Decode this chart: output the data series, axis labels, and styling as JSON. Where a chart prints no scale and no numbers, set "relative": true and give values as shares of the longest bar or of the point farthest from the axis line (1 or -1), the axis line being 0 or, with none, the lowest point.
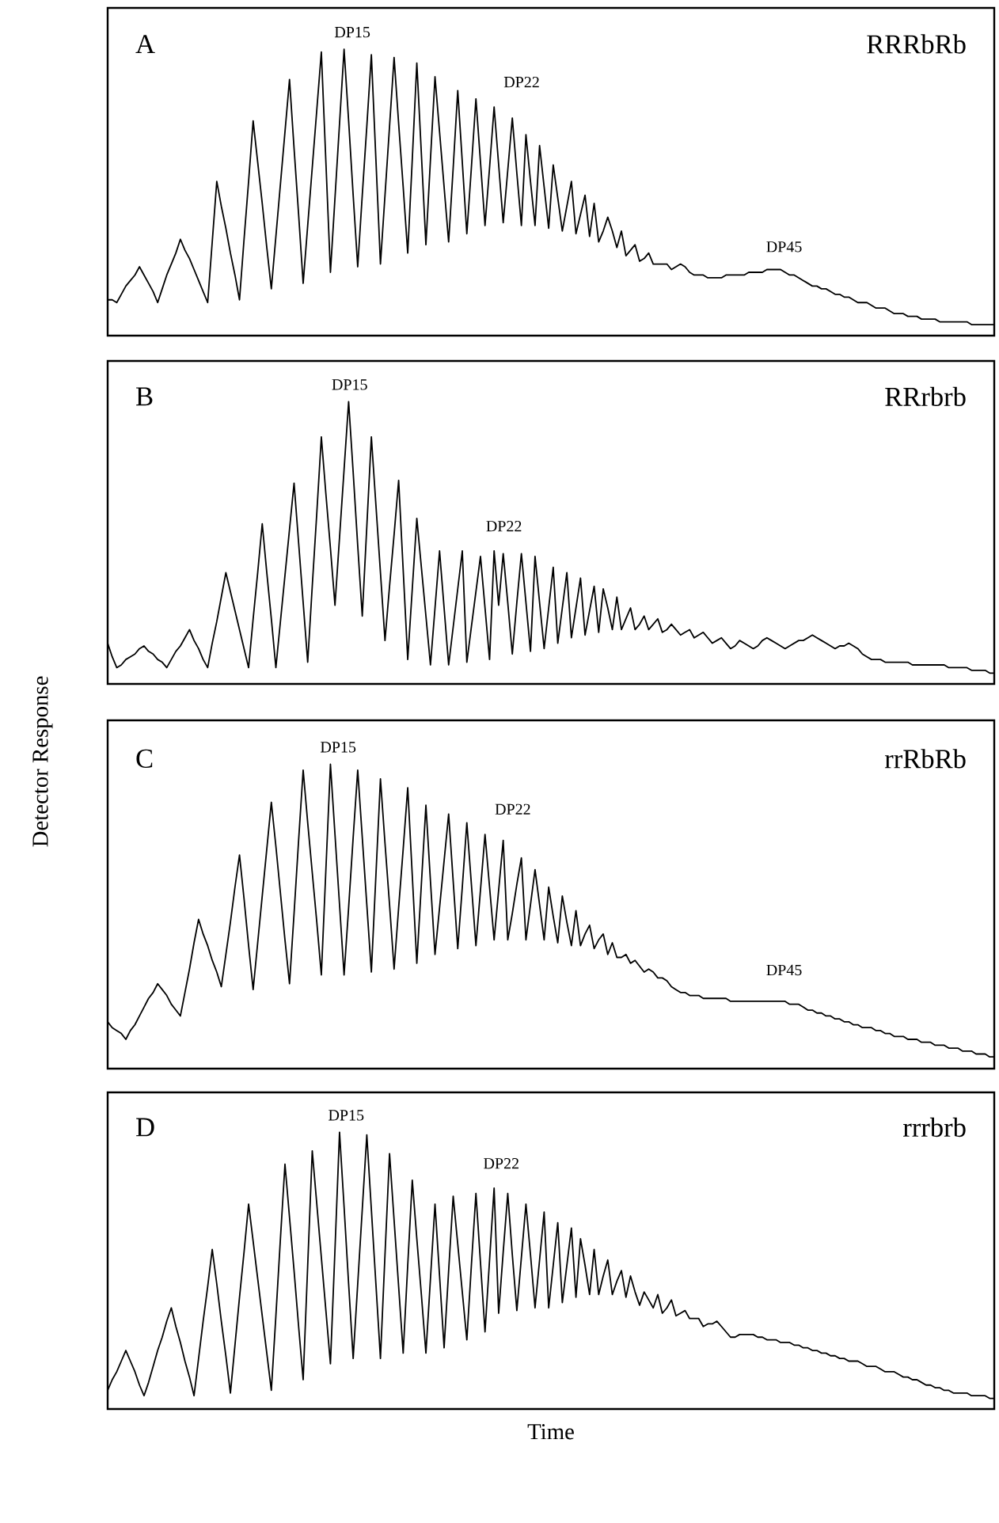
{
  "chart_data": [
    {
      "type": "line",
      "title": "RRRbRb",
      "relative": true,
      "color": "#000000",
      "annotations": [
        "A",
        "DP15",
        "DP22",
        "DP45"
      ],
      "categories": [
        null,
        null,
        null,
        null,
        null,
        null,
        null,
        null,
        null,
        null,
        null,
        null,
        null,
        null,
        null,
        null,
        null,
        null,
        null,
        null,
        null,
        null,
        null,
        null,
        null,
        null,
        null,
        null,
        null,
        null,
        null,
        null,
        null,
        null,
        null,
        null,
        null,
        null,
        null,
        null,
        null,
        null,
        null,
        null,
        null,
        null,
        null,
        null,
        null,
        null,
        null,
        null,
        null,
        null,
        null,
        null,
        null,
        null,
        null,
        null,
        null,
        null,
        null,
        null,
        null,
        null,
        null,
        null,
        null,
        null,
        null,
        null,
        null,
        null,
        null,
        null,
        null,
        null,
        null,
        null,
        null,
        null,
        null,
        null,
        null,
        null,
        null,
        null,
        null,
        null,
        null,
        null,
        null,
        null,
        null,
        null,
        null,
        null,
        null,
        null,
        null,
        null,
        null,
        null,
        null,
        null,
        null,
        null,
        null,
        null,
        null,
        null,
        null,
        null,
        null,
        null,
        null,
        null,
        null,
        null,
        null,
        null,
        null,
        null,
        null,
        null,
        null,
        null,
        null,
        null,
        null,
        null,
        null,
        null,
        null,
        null,
        null,
        null,
        null,
        null,
        null,
        null,
        null,
        null,
        null,
        null,
        null,
        null,
        null,
        null,
        null,
        null,
        null,
        null,
        null,
        null,
        null,
        null,
        null,
        null,
        null,
        null,
        null,
        null,
        null,
        null,
        null,
        null,
        null,
        null,
        null,
        null,
        null,
        null,
        null,
        null,
        null,
        null,
        null,
        null,
        null,
        null,
        null,
        null,
        null,
        null,
        null,
        null,
        null,
        null,
        null,
        null,
        null,
        null,
        null,
        null
      ],
      "values": [
        0.09,
        0.09,
        0.08,
        0.11,
        0.14,
        0.16,
        0.18,
        0.21,
        0.18,
        0.15,
        0.12,
        0.08,
        0.13,
        0.18,
        0.22,
        0.26,
        0.31,
        0.27,
        0.24,
        0.2,
        0.16,
        0.12,
        0.08,
        0.3,
        0.52,
        0.43,
        0.35,
        0.26,
        0.18,
        0.09,
        0.31,
        0.52,
        0.74,
        0.59,
        0.44,
        0.28,
        0.13,
        0.32,
        0.51,
        0.7,
        0.89,
        0.64,
        0.4,
        0.15,
        0.36,
        0.57,
        0.78,
        0.99,
        0.59,
        0.19,
        0.46,
        0.73,
        1.0,
        0.74,
        0.47,
        0.21,
        0.47,
        0.72,
        0.98,
        0.6,
        0.22,
        0.47,
        0.72,
        0.97,
        0.73,
        0.5,
        0.26,
        0.6,
        0.95,
        0.62,
        0.29,
        0.6,
        0.9,
        0.7,
        0.5,
        0.3,
        0.57,
        0.85,
        0.59,
        0.33,
        0.57,
        0.82,
        0.59,
        0.36,
        0.57,
        0.79,
        0.58,
        0.37,
        0.56,
        0.75,
        0.55,
        0.36,
        0.69,
        0.52,
        0.36,
        0.65,
        0.5,
        0.35,
        0.58,
        0.46,
        0.34,
        0.43,
        0.52,
        0.33,
        0.4,
        0.47,
        0.32,
        0.44,
        0.3,
        0.34,
        0.39,
        0.34,
        0.28,
        0.34,
        0.25,
        0.27,
        0.29,
        0.23,
        0.24,
        0.26,
        0.22,
        0.22,
        0.22,
        0.22,
        0.2,
        0.21,
        0.22,
        0.21,
        0.19,
        0.18,
        0.18,
        0.18,
        0.17,
        0.17,
        0.17,
        0.17,
        0.18,
        0.18,
        0.18,
        0.18,
        0.18,
        0.19,
        0.19,
        0.19,
        0.19,
        0.2,
        0.2,
        0.2,
        0.2,
        0.19,
        0.18,
        0.18,
        0.17,
        0.16,
        0.15,
        0.14,
        0.14,
        0.13,
        0.13,
        0.12,
        0.11,
        0.11,
        0.1,
        0.1,
        0.09,
        0.08,
        0.08,
        0.08,
        0.07,
        0.06,
        0.06,
        0.06,
        0.05,
        0.04,
        0.04,
        0.04,
        0.03,
        0.03,
        0.03,
        0.02,
        0.02,
        0.02,
        0.02,
        0.01,
        0.01,
        0.01,
        0.01,
        0.01,
        0.01,
        0.01,
        0.0,
        0.0,
        0.0,
        0.0,
        0.0,
        0.0
      ]
    },
    {
      "type": "line",
      "title": "RRrbrb",
      "ylabel": "Detector Response",
      "relative": true,
      "color": "#000000",
      "annotations": [
        "B",
        "DP15",
        "DP22"
      ],
      "categories": [
        null,
        null,
        null,
        null,
        null,
        null,
        null,
        null,
        null,
        null,
        null,
        null,
        null,
        null,
        null,
        null,
        null,
        null,
        null,
        null,
        null,
        null,
        null,
        null,
        null,
        null,
        null,
        null,
        null,
        null,
        null,
        null,
        null,
        null,
        null,
        null,
        null,
        null,
        null,
        null,
        null,
        null,
        null,
        null,
        null,
        null,
        null,
        null,
        null,
        null,
        null,
        null,
        null,
        null,
        null,
        null,
        null,
        null,
        null,
        null,
        null,
        null,
        null,
        null,
        null,
        null,
        null,
        null,
        null,
        null,
        null,
        null,
        null,
        null,
        null,
        null,
        null,
        null,
        null,
        null,
        null,
        null,
        null,
        null,
        null,
        null,
        null,
        null,
        null,
        null,
        null,
        null,
        null,
        null,
        null,
        null,
        null,
        null,
        null,
        null,
        null,
        null,
        null,
        null,
        null,
        null,
        null,
        null,
        null,
        null,
        null,
        null,
        null,
        null,
        null,
        null,
        null,
        null,
        null,
        null,
        null,
        null,
        null,
        null,
        null,
        null,
        null,
        null,
        null,
        null,
        null,
        null,
        null,
        null,
        null,
        null,
        null,
        null,
        null,
        null,
        null,
        null,
        null,
        null,
        null,
        null,
        null,
        null,
        null,
        null,
        null,
        null,
        null,
        null,
        null,
        null,
        null,
        null,
        null,
        null,
        null,
        null,
        null,
        null,
        null,
        null,
        null,
        null,
        null,
        null,
        null,
        null,
        null,
        null,
        null,
        null,
        null,
        null,
        null,
        null,
        null,
        null,
        null,
        null,
        null,
        null,
        null,
        null,
        null,
        null,
        null,
        null,
        null,
        null,
        null,
        null
      ],
      "values": [
        0.11,
        0.06,
        0.02,
        0.03,
        0.05,
        0.06,
        0.07,
        0.09,
        0.1,
        0.08,
        0.07,
        0.05,
        0.04,
        0.02,
        0.05,
        0.08,
        0.1,
        0.13,
        0.16,
        0.12,
        0.09,
        0.05,
        0.02,
        0.11,
        0.19,
        0.28,
        0.37,
        0.3,
        0.23,
        0.16,
        0.09,
        0.02,
        0.2,
        0.37,
        0.55,
        0.37,
        0.2,
        0.02,
        0.19,
        0.36,
        0.53,
        0.7,
        0.48,
        0.26,
        0.04,
        0.32,
        0.59,
        0.87,
        0.66,
        0.46,
        0.25,
        0.5,
        0.75,
        1.0,
        0.74,
        0.47,
        0.21,
        0.54,
        0.87,
        0.62,
        0.37,
        0.12,
        0.32,
        0.51,
        0.71,
        0.38,
        0.05,
        0.31,
        0.57,
        0.39,
        0.21,
        0.03,
        0.24,
        0.45,
        0.24,
        0.03,
        0.17,
        0.31,
        0.45,
        0.04,
        0.17,
        0.3,
        0.43,
        0.24,
        0.05,
        0.45,
        0.25,
        0.44,
        0.26,
        0.07,
        0.26,
        0.44,
        0.26,
        0.08,
        0.43,
        0.26,
        0.09,
        0.24,
        0.39,
        0.11,
        0.24,
        0.37,
        0.13,
        0.24,
        0.35,
        0.14,
        0.23,
        0.32,
        0.15,
        0.31,
        0.24,
        0.16,
        0.28,
        0.16,
        0.2,
        0.24,
        0.16,
        0.18,
        0.21,
        0.16,
        0.18,
        0.2,
        0.15,
        0.16,
        0.18,
        0.16,
        0.14,
        0.15,
        0.16,
        0.13,
        0.14,
        0.15,
        0.13,
        0.11,
        0.12,
        0.13,
        0.11,
        0.09,
        0.1,
        0.12,
        0.11,
        0.1,
        0.09,
        0.1,
        0.12,
        0.13,
        0.12,
        0.11,
        0.1,
        0.09,
        0.1,
        0.11,
        0.12,
        0.12,
        0.13,
        0.14,
        0.13,
        0.12,
        0.11,
        0.1,
        0.09,
        0.1,
        0.1,
        0.11,
        0.1,
        0.09,
        0.07,
        0.06,
        0.05,
        0.05,
        0.05,
        0.04,
        0.04,
        0.04,
        0.04,
        0.04,
        0.04,
        0.03,
        0.03,
        0.03,
        0.03,
        0.03,
        0.03,
        0.03,
        0.03,
        0.02,
        0.02,
        0.02,
        0.02,
        0.02,
        0.01,
        0.01,
        0.01,
        0.01,
        0.0,
        0.0
      ]
    },
    {
      "type": "line",
      "title": "rrRbRb",
      "relative": true,
      "color": "#000000",
      "annotations": [
        "C",
        "DP15",
        "DP22",
        "DP45"
      ],
      "categories": [
        null,
        null,
        null,
        null,
        null,
        null,
        null,
        null,
        null,
        null,
        null,
        null,
        null,
        null,
        null,
        null,
        null,
        null,
        null,
        null,
        null,
        null,
        null,
        null,
        null,
        null,
        null,
        null,
        null,
        null,
        null,
        null,
        null,
        null,
        null,
        null,
        null,
        null,
        null,
        null,
        null,
        null,
        null,
        null,
        null,
        null,
        null,
        null,
        null,
        null,
        null,
        null,
        null,
        null,
        null,
        null,
        null,
        null,
        null,
        null,
        null,
        null,
        null,
        null,
        null,
        null,
        null,
        null,
        null,
        null,
        null,
        null,
        null,
        null,
        null,
        null,
        null,
        null,
        null,
        null,
        null,
        null,
        null,
        null,
        null,
        null,
        null,
        null,
        null,
        null,
        null,
        null,
        null,
        null,
        null,
        null,
        null,
        null,
        null,
        null,
        null,
        null,
        null,
        null,
        null,
        null,
        null,
        null,
        null,
        null,
        null,
        null,
        null,
        null,
        null,
        null,
        null,
        null,
        null,
        null,
        null,
        null,
        null,
        null,
        null,
        null,
        null,
        null,
        null,
        null,
        null,
        null,
        null,
        null,
        null,
        null,
        null,
        null,
        null,
        null,
        null,
        null,
        null,
        null,
        null,
        null,
        null,
        null,
        null,
        null,
        null,
        null,
        null,
        null,
        null,
        null,
        null,
        null,
        null,
        null,
        null,
        null,
        null,
        null,
        null,
        null,
        null,
        null,
        null,
        null,
        null,
        null,
        null,
        null,
        null,
        null,
        null,
        null,
        null,
        null,
        null,
        null,
        null,
        null,
        null,
        null,
        null,
        null,
        null,
        null,
        null,
        null,
        null,
        null,
        null,
        null
      ],
      "values": [
        0.12,
        0.1,
        0.09,
        0.08,
        0.06,
        0.09,
        0.11,
        0.14,
        0.17,
        0.2,
        0.22,
        0.25,
        0.23,
        0.21,
        0.18,
        0.16,
        0.14,
        0.22,
        0.3,
        0.39,
        0.47,
        0.42,
        0.38,
        0.33,
        0.29,
        0.24,
        0.35,
        0.46,
        0.58,
        0.69,
        0.54,
        0.38,
        0.23,
        0.39,
        0.55,
        0.71,
        0.87,
        0.72,
        0.56,
        0.4,
        0.25,
        0.49,
        0.74,
        0.98,
        0.8,
        0.63,
        0.46,
        0.28,
        0.64,
        1.0,
        0.76,
        0.52,
        0.28,
        0.51,
        0.75,
        0.98,
        0.75,
        0.52,
        0.29,
        0.62,
        0.95,
        0.73,
        0.52,
        0.3,
        0.51,
        0.71,
        0.92,
        0.62,
        0.32,
        0.59,
        0.86,
        0.6,
        0.35,
        0.51,
        0.67,
        0.83,
        0.6,
        0.37,
        0.58,
        0.8,
        0.59,
        0.38,
        0.57,
        0.76,
        0.58,
        0.4,
        0.57,
        0.74,
        0.4,
        0.49,
        0.59,
        0.68,
        0.4,
        0.52,
        0.64,
        0.52,
        0.4,
        0.58,
        0.48,
        0.39,
        0.55,
        0.46,
        0.38,
        0.5,
        0.38,
        0.42,
        0.45,
        0.37,
        0.4,
        0.42,
        0.35,
        0.39,
        0.34,
        0.34,
        0.35,
        0.32,
        0.33,
        0.31,
        0.29,
        0.3,
        0.29,
        0.27,
        0.27,
        0.26,
        0.24,
        0.23,
        0.22,
        0.22,
        0.21,
        0.21,
        0.21,
        0.2,
        0.2,
        0.2,
        0.2,
        0.2,
        0.2,
        0.19,
        0.19,
        0.19,
        0.19,
        0.19,
        0.19,
        0.19,
        0.19,
        0.19,
        0.19,
        0.19,
        0.19,
        0.19,
        0.18,
        0.18,
        0.18,
        0.17,
        0.16,
        0.16,
        0.15,
        0.15,
        0.14,
        0.14,
        0.13,
        0.13,
        0.12,
        0.12,
        0.11,
        0.11,
        0.1,
        0.1,
        0.1,
        0.09,
        0.09,
        0.08,
        0.08,
        0.07,
        0.07,
        0.07,
        0.06,
        0.06,
        0.06,
        0.05,
        0.05,
        0.05,
        0.04,
        0.04,
        0.04,
        0.03,
        0.03,
        0.03,
        0.02,
        0.02,
        0.02,
        0.01,
        0.01,
        0.01,
        0.0,
        0.0
      ]
    },
    {
      "type": "line",
      "title": "rrrbrb",
      "xlabel": "Time",
      "relative": true,
      "color": "#000000",
      "annotations": [
        "D",
        "DP15",
        "DP22"
      ],
      "categories": [
        null,
        null,
        null,
        null,
        null,
        null,
        null,
        null,
        null,
        null,
        null,
        null,
        null,
        null,
        null,
        null,
        null,
        null,
        null,
        null,
        null,
        null,
        null,
        null,
        null,
        null,
        null,
        null,
        null,
        null,
        null,
        null,
        null,
        null,
        null,
        null,
        null,
        null,
        null,
        null,
        null,
        null,
        null,
        null,
        null,
        null,
        null,
        null,
        null,
        null,
        null,
        null,
        null,
        null,
        null,
        null,
        null,
        null,
        null,
        null,
        null,
        null,
        null,
        null,
        null,
        null,
        null,
        null,
        null,
        null,
        null,
        null,
        null,
        null,
        null,
        null,
        null,
        null,
        null,
        null,
        null,
        null,
        null,
        null,
        null,
        null,
        null,
        null,
        null,
        null,
        null,
        null,
        null,
        null,
        null,
        null,
        null,
        null,
        null,
        null,
        null,
        null,
        null,
        null,
        null,
        null,
        null,
        null,
        null,
        null,
        null,
        null,
        null,
        null,
        null,
        null,
        null,
        null,
        null,
        null,
        null,
        null,
        null,
        null,
        null,
        null,
        null,
        null,
        null,
        null,
        null,
        null,
        null,
        null,
        null,
        null,
        null,
        null,
        null,
        null,
        null,
        null,
        null,
        null,
        null,
        null,
        null,
        null,
        null,
        null,
        null,
        null,
        null,
        null,
        null,
        null,
        null,
        null,
        null,
        null,
        null,
        null,
        null,
        null,
        null,
        null,
        null,
        null,
        null,
        null,
        null,
        null,
        null,
        null,
        null,
        null,
        null,
        null,
        null,
        null,
        null,
        null,
        null,
        null,
        null,
        null,
        null,
        null,
        null,
        null,
        null,
        null,
        null,
        null,
        null,
        null
      ],
      "values": [
        0.03,
        0.07,
        0.1,
        0.14,
        0.18,
        0.14,
        0.1,
        0.05,
        0.01,
        0.06,
        0.12,
        0.18,
        0.23,
        0.29,
        0.34,
        0.27,
        0.21,
        0.14,
        0.08,
        0.01,
        0.15,
        0.29,
        0.42,
        0.56,
        0.43,
        0.29,
        0.16,
        0.02,
        0.2,
        0.38,
        0.55,
        0.73,
        0.59,
        0.45,
        0.31,
        0.17,
        0.03,
        0.31,
        0.6,
        0.88,
        0.68,
        0.48,
        0.27,
        0.07,
        0.5,
        0.93,
        0.73,
        0.53,
        0.33,
        0.13,
        0.56,
        1.0,
        0.72,
        0.43,
        0.15,
        0.43,
        0.71,
        0.99,
        0.71,
        0.43,
        0.15,
        0.54,
        0.92,
        0.67,
        0.42,
        0.17,
        0.5,
        0.82,
        0.6,
        0.39,
        0.17,
        0.45,
        0.73,
        0.46,
        0.19,
        0.48,
        0.76,
        0.58,
        0.4,
        0.22,
        0.5,
        0.77,
        0.51,
        0.25,
        0.52,
        0.79,
        0.32,
        0.55,
        0.77,
        0.54,
        0.33,
        0.53,
        0.73,
        0.54,
        0.34,
        0.52,
        0.7,
        0.34,
        0.5,
        0.66,
        0.36,
        0.5,
        0.64,
        0.38,
        0.6,
        0.5,
        0.39,
        0.56,
        0.39,
        0.46,
        0.52,
        0.39,
        0.44,
        0.48,
        0.38,
        0.46,
        0.4,
        0.35,
        0.4,
        0.37,
        0.34,
        0.39,
        0.32,
        0.34,
        0.37,
        0.31,
        0.32,
        0.33,
        0.3,
        0.3,
        0.3,
        0.27,
        0.28,
        0.28,
        0.29,
        0.27,
        0.25,
        0.23,
        0.23,
        0.24,
        0.24,
        0.24,
        0.24,
        0.23,
        0.23,
        0.22,
        0.22,
        0.22,
        0.21,
        0.21,
        0.21,
        0.2,
        0.2,
        0.19,
        0.19,
        0.18,
        0.18,
        0.17,
        0.17,
        0.16,
        0.16,
        0.15,
        0.15,
        0.14,
        0.14,
        0.14,
        0.13,
        0.12,
        0.12,
        0.12,
        0.11,
        0.1,
        0.1,
        0.1,
        0.09,
        0.08,
        0.08,
        0.07,
        0.07,
        0.06,
        0.05,
        0.05,
        0.04,
        0.04,
        0.03,
        0.03,
        0.02,
        0.02,
        0.02,
        0.02,
        0.01,
        0.01,
        0.01,
        0.01,
        0.0,
        0.0
      ]
    }
  ]
}
